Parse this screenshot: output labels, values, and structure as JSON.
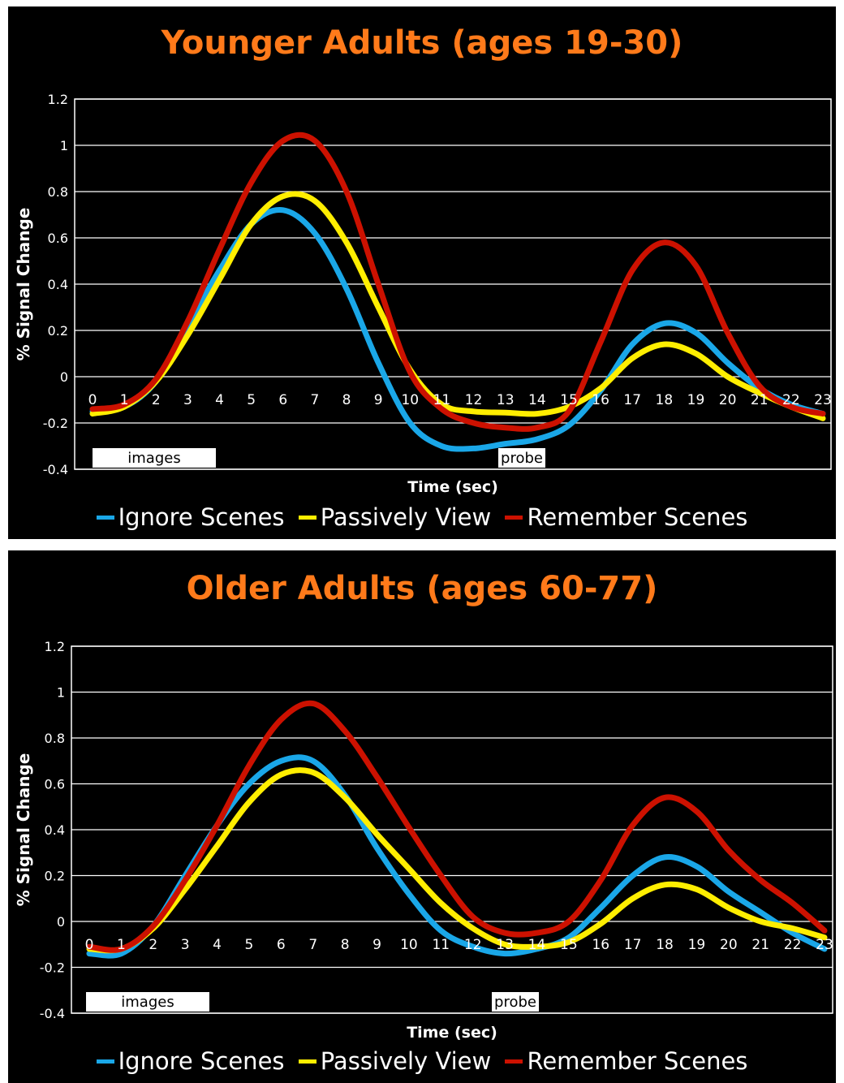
{
  "chart_data": [
    {
      "type": "line",
      "title": "Younger Adults (ages 19-30)",
      "xlabel": "Time (sec)",
      "ylabel": "% Signal Change",
      "ylim": [
        -0.4,
        1.2
      ],
      "yticks": [
        "-0.4",
        "-0.2",
        "0",
        "0.2",
        "0.4",
        "0.6",
        "0.8",
        "1",
        "1.2"
      ],
      "x": [
        0,
        1,
        2,
        3,
        4,
        5,
        6,
        7,
        8,
        9,
        10,
        11,
        12,
        13,
        14,
        15,
        16,
        17,
        18,
        19,
        20,
        21,
        22,
        23
      ],
      "grid": true,
      "legend_position": "bottom",
      "annotations": [
        "images",
        "probe"
      ],
      "series": [
        {
          "name": "Ignore Scenes",
          "color": "#1aa7e8",
          "values": [
            -0.15,
            -0.13,
            -0.02,
            0.22,
            0.46,
            0.66,
            0.72,
            0.62,
            0.38,
            0.06,
            -0.2,
            -0.3,
            -0.31,
            -0.29,
            -0.27,
            -0.21,
            -0.06,
            0.14,
            0.23,
            0.19,
            0.06,
            -0.05,
            -0.12,
            -0.16
          ]
        },
        {
          "name": "Passively View",
          "color": "#ffee00",
          "values": [
            -0.16,
            -0.13,
            -0.02,
            0.18,
            0.42,
            0.66,
            0.78,
            0.76,
            0.58,
            0.3,
            0.03,
            -0.12,
            -0.15,
            -0.155,
            -0.16,
            -0.13,
            -0.05,
            0.08,
            0.14,
            0.1,
            0.0,
            -0.07,
            -0.13,
            -0.18
          ]
        },
        {
          "name": "Remember Scenes",
          "color": "#cc1100",
          "values": [
            -0.14,
            -0.12,
            -0.01,
            0.24,
            0.55,
            0.84,
            1.02,
            1.02,
            0.8,
            0.4,
            0.02,
            -0.14,
            -0.2,
            -0.22,
            -0.22,
            -0.15,
            0.15,
            0.46,
            0.58,
            0.48,
            0.19,
            -0.04,
            -0.13,
            -0.16
          ]
        }
      ]
    },
    {
      "type": "line",
      "title": "Older Adults (ages 60-77)",
      "xlabel": "Time (sec)",
      "ylabel": "% Signal Change",
      "ylim": [
        -0.4,
        1.2
      ],
      "yticks": [
        "-0.4",
        "-0.2",
        "0",
        "0.2",
        "0.4",
        "0.6",
        "0.8",
        "1",
        "1.2"
      ],
      "x": [
        0,
        1,
        2,
        3,
        4,
        5,
        6,
        7,
        8,
        9,
        10,
        11,
        12,
        13,
        14,
        15,
        16,
        17,
        18,
        19,
        20,
        21,
        22,
        23
      ],
      "grid": true,
      "legend_position": "bottom",
      "annotations": [
        "images",
        "probe"
      ],
      "series": [
        {
          "name": "Ignore Scenes",
          "color": "#1aa7e8",
          "values": [
            -0.14,
            -0.14,
            -0.02,
            0.2,
            0.42,
            0.6,
            0.7,
            0.7,
            0.55,
            0.32,
            0.12,
            -0.04,
            -0.11,
            -0.14,
            -0.12,
            -0.07,
            0.06,
            0.2,
            0.28,
            0.24,
            0.13,
            0.04,
            -0.05,
            -0.12
          ]
        },
        {
          "name": "Passively View",
          "color": "#ffee00",
          "values": [
            -0.12,
            -0.12,
            -0.03,
            0.14,
            0.33,
            0.52,
            0.64,
            0.65,
            0.54,
            0.38,
            0.23,
            0.08,
            -0.03,
            -0.1,
            -0.11,
            -0.09,
            -0.01,
            0.1,
            0.16,
            0.14,
            0.06,
            0.0,
            -0.03,
            -0.07
          ]
        },
        {
          "name": "Remember Scenes",
          "color": "#cc1100",
          "values": [
            -0.11,
            -0.12,
            -0.02,
            0.18,
            0.42,
            0.68,
            0.88,
            0.95,
            0.83,
            0.63,
            0.41,
            0.2,
            0.02,
            -0.05,
            -0.05,
            0.0,
            0.18,
            0.42,
            0.54,
            0.48,
            0.31,
            0.18,
            0.08,
            -0.04
          ]
        }
      ]
    }
  ]
}
